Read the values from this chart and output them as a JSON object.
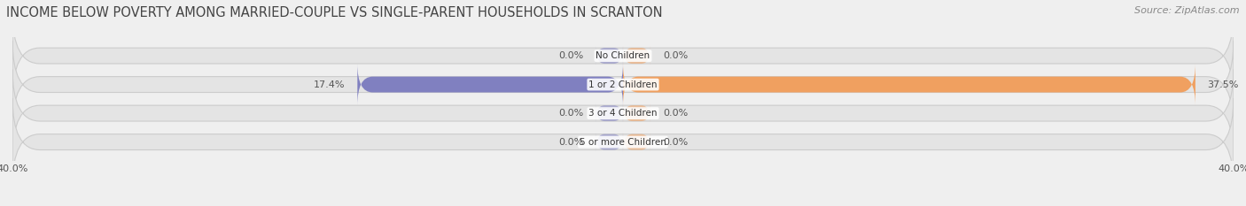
{
  "title": "INCOME BELOW POVERTY AMONG MARRIED-COUPLE VS SINGLE-PARENT HOUSEHOLDS IN SCRANTON",
  "source": "Source: ZipAtlas.com",
  "categories": [
    "No Children",
    "1 or 2 Children",
    "3 or 4 Children",
    "5 or more Children"
  ],
  "married_values": [
    0.0,
    17.4,
    0.0,
    0.0
  ],
  "single_values": [
    0.0,
    37.5,
    0.0,
    0.0
  ],
  "xlim_min": -40,
  "xlim_max": 40,
  "married_color": "#8080c0",
  "single_color": "#f0a060",
  "bar_height": 0.55,
  "background_color": "#efefef",
  "bar_bg_color": "#e4e4e4",
  "title_fontsize": 10.5,
  "source_fontsize": 8,
  "label_fontsize": 8,
  "category_fontsize": 7.5
}
